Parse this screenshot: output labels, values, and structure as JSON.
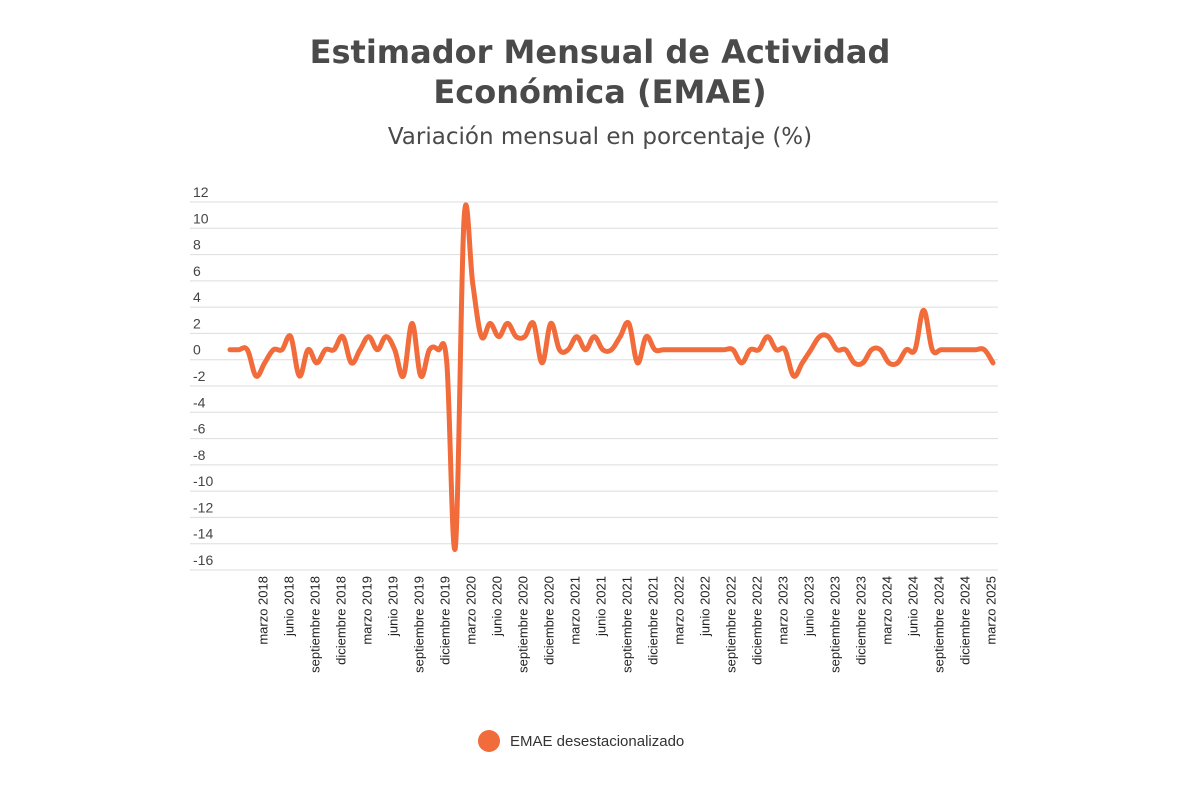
{
  "title_line1": "Estimador Mensual de Actividad",
  "title_line2": "Económica (EMAE)",
  "subtitle": "Variación mensual en porcentaje (%)",
  "colors": {
    "series": "#f26b3a",
    "grid": "#dddddd",
    "text": "#444444"
  },
  "chart_data": {
    "type": "line",
    "title": "Estimador Mensual de Actividad Económica (EMAE)",
    "subtitle": "Variación mensual en porcentaje (%)",
    "xlabel": "",
    "ylabel": "",
    "ylim": [
      -16,
      12
    ],
    "yticks": [
      12,
      10,
      8,
      6,
      4,
      2,
      0,
      -2,
      -4,
      -6,
      -8,
      -10,
      -12,
      -14,
      -16
    ],
    "grid": true,
    "legend_position": "bottom",
    "x_tick_labels": [
      "marzo 2018",
      "junio 2018",
      "septiembre 2018",
      "diciembre 2018",
      "marzo 2019",
      "junio 2019",
      "septiembre 2019",
      "diciembre 2019",
      "marzo 2020",
      "junio 2020",
      "septiembre 2020",
      "diciembre 2020",
      "marzo 2021",
      "junio 2021",
      "septiembre 2021",
      "diciembre 2021",
      "marzo 2022",
      "junio 2022",
      "septiembre 2022",
      "diciembre 2022",
      "marzo 2023",
      "junio 2023",
      "septiembre 2023",
      "diciembre 2023",
      "marzo 2024",
      "junio 2024",
      "septiembre 2024",
      "diciembre 2024",
      "marzo 2025"
    ],
    "series": [
      {
        "name": "EMAE desestacionalizado",
        "x_start": "enero 2018",
        "x_end": "abril 2025",
        "values": [
          0,
          0,
          0,
          -2,
          -1,
          0,
          0,
          1,
          -2,
          0,
          -1,
          0,
          0,
          1,
          -1,
          0,
          1,
          0,
          1,
          0,
          -2,
          2,
          -2,
          0,
          0,
          -1,
          -15,
          10,
          5,
          1,
          2,
          1,
          2,
          1,
          1,
          2,
          -1,
          2,
          0,
          0,
          1,
          0,
          1,
          0,
          0,
          1,
          2,
          -1,
          1,
          0,
          0,
          0,
          0,
          0,
          0,
          0,
          0,
          0,
          0,
          -1,
          0,
          0,
          1,
          0,
          0,
          -2,
          -1,
          0,
          1,
          1,
          0,
          0,
          -1,
          -1,
          0,
          0,
          -1,
          -1,
          0,
          0,
          3,
          0,
          0,
          0,
          0,
          0,
          0,
          0,
          -1
        ]
      }
    ]
  }
}
